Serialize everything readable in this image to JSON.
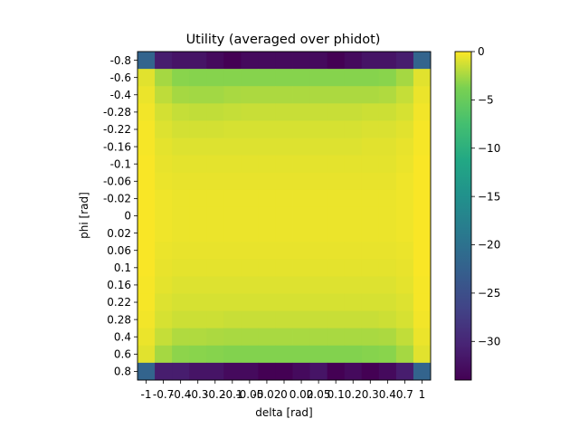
{
  "chart_data": {
    "type": "heatmap",
    "title": "Utility (averaged over phidot)",
    "xlabel": "delta [rad]",
    "ylabel": "phi [rad]",
    "x_ticks": [
      "-1",
      "-0.7",
      "-0.4",
      "-0.3",
      "-0.2",
      "-0.1",
      "-0.05",
      "-0.02",
      "0",
      "0.02",
      "0.05",
      "0.1",
      "0.2",
      "0.3",
      "0.4",
      "0.7",
      "1"
    ],
    "y_ticks": [
      "-0.8",
      "-0.6",
      "-0.4",
      "-0.28",
      "-0.22",
      "-0.16",
      "-0.1",
      "-0.06",
      "-0.02",
      "0",
      "0.02",
      "0.06",
      "0.1",
      "0.16",
      "0.22",
      "0.28",
      "0.4",
      "0.6",
      "0.8"
    ],
    "colorbar": {
      "min": -34,
      "max": 0,
      "ticks": [
        0,
        -5,
        -10,
        -15,
        -20,
        -25,
        -30
      ],
      "colormap": "viridis"
    },
    "values": [
      [
        -22,
        -31,
        -32,
        -32,
        -33,
        -34,
        -33,
        -33,
        -33,
        -33,
        -33,
        -34,
        -33,
        -32,
        -32,
        -31,
        -22
      ],
      [
        -0.8,
        -2.5,
        -3.3,
        -3.4,
        -3.4,
        -3.4,
        -3.4,
        -3.4,
        -3.4,
        -3.4,
        -3.4,
        -3.4,
        -3.4,
        -3.4,
        -3.3,
        -2.5,
        -0.8
      ],
      [
        -0.5,
        -1.8,
        -2.5,
        -2.6,
        -2.6,
        -2.4,
        -2.3,
        -2.3,
        -2.3,
        -2.3,
        -2.3,
        -2.3,
        -2.3,
        -2.3,
        -2.2,
        -1.6,
        -0.5
      ],
      [
        -0.3,
        -1.2,
        -1.6,
        -1.7,
        -1.7,
        -1.6,
        -1.5,
        -1.5,
        -1.5,
        -1.5,
        -1.5,
        -1.5,
        -1.5,
        -1.4,
        -1.4,
        -1.1,
        -0.3
      ],
      [
        -0.2,
        -0.9,
        -1.2,
        -1.2,
        -1.2,
        -1.1,
        -1.1,
        -1.1,
        -1.1,
        -1.1,
        -1.1,
        -1.1,
        -1.1,
        -1.0,
        -1.0,
        -0.8,
        -0.2
      ],
      [
        -0.2,
        -0.7,
        -0.9,
        -0.9,
        -0.9,
        -0.9,
        -0.9,
        -0.9,
        -0.9,
        -0.9,
        -0.9,
        -0.9,
        -0.9,
        -0.8,
        -0.8,
        -0.6,
        -0.2
      ],
      [
        -0.1,
        -0.6,
        -0.7,
        -0.7,
        -0.7,
        -0.7,
        -0.7,
        -0.7,
        -0.7,
        -0.7,
        -0.7,
        -0.7,
        -0.7,
        -0.7,
        -0.7,
        -0.5,
        -0.1
      ],
      [
        -0.1,
        -0.5,
        -0.6,
        -0.6,
        -0.6,
        -0.6,
        -0.6,
        -0.6,
        -0.6,
        -0.6,
        -0.6,
        -0.6,
        -0.6,
        -0.6,
        -0.6,
        -0.4,
        -0.1
      ],
      [
        -0.1,
        -0.4,
        -0.5,
        -0.5,
        -0.5,
        -0.5,
        -0.5,
        -0.5,
        -0.5,
        -0.5,
        -0.5,
        -0.5,
        -0.5,
        -0.5,
        -0.5,
        -0.4,
        -0.1
      ],
      [
        -0.1,
        -0.4,
        -0.5,
        -0.5,
        -0.5,
        -0.5,
        -0.5,
        -0.5,
        -0.5,
        -0.5,
        -0.5,
        -0.5,
        -0.5,
        -0.5,
        -0.5,
        -0.4,
        -0.1
      ],
      [
        -0.1,
        -0.4,
        -0.5,
        -0.5,
        -0.5,
        -0.5,
        -0.5,
        -0.5,
        -0.5,
        -0.5,
        -0.5,
        -0.5,
        -0.5,
        -0.5,
        -0.5,
        -0.4,
        -0.1
      ],
      [
        -0.1,
        -0.5,
        -0.6,
        -0.6,
        -0.6,
        -0.6,
        -0.6,
        -0.6,
        -0.6,
        -0.6,
        -0.6,
        -0.6,
        -0.6,
        -0.6,
        -0.6,
        -0.5,
        -0.1
      ],
      [
        -0.1,
        -0.6,
        -0.7,
        -0.7,
        -0.7,
        -0.7,
        -0.7,
        -0.7,
        -0.7,
        -0.7,
        -0.7,
        -0.7,
        -0.7,
        -0.7,
        -0.7,
        -0.6,
        -0.1
      ],
      [
        -0.2,
        -0.7,
        -0.9,
        -0.9,
        -0.9,
        -0.9,
        -0.9,
        -0.9,
        -0.9,
        -0.9,
        -0.9,
        -0.9,
        -0.9,
        -0.9,
        -0.9,
        -0.7,
        -0.2
      ],
      [
        -0.2,
        -0.9,
        -1.1,
        -1.1,
        -1.1,
        -1.1,
        -1.1,
        -1.1,
        -1.1,
        -1.1,
        -1.1,
        -1.1,
        -1.1,
        -1.1,
        -1.1,
        -0.9,
        -0.2
      ],
      [
        -0.3,
        -1.1,
        -1.4,
        -1.4,
        -1.4,
        -1.5,
        -1.5,
        -1.5,
        -1.5,
        -1.5,
        -1.5,
        -1.5,
        -1.5,
        -1.5,
        -1.4,
        -1.1,
        -0.3
      ],
      [
        -0.5,
        -1.6,
        -2.2,
        -2.2,
        -2.3,
        -2.4,
        -2.4,
        -2.4,
        -2.4,
        -2.4,
        -2.4,
        -2.4,
        -2.4,
        -2.4,
        -2.3,
        -1.7,
        -0.5
      ],
      [
        -0.8,
        -2.5,
        -3.2,
        -3.3,
        -3.4,
        -3.5,
        -3.5,
        -3.5,
        -3.5,
        -3.5,
        -3.5,
        -3.5,
        -3.5,
        -3.4,
        -3.3,
        -2.5,
        -0.8
      ],
      [
        -22,
        -31,
        -31,
        -32,
        -32,
        -33,
        -33,
        -34,
        -34,
        -33,
        -32,
        -34,
        -33,
        -34,
        -33,
        -31,
        -22
      ]
    ]
  }
}
